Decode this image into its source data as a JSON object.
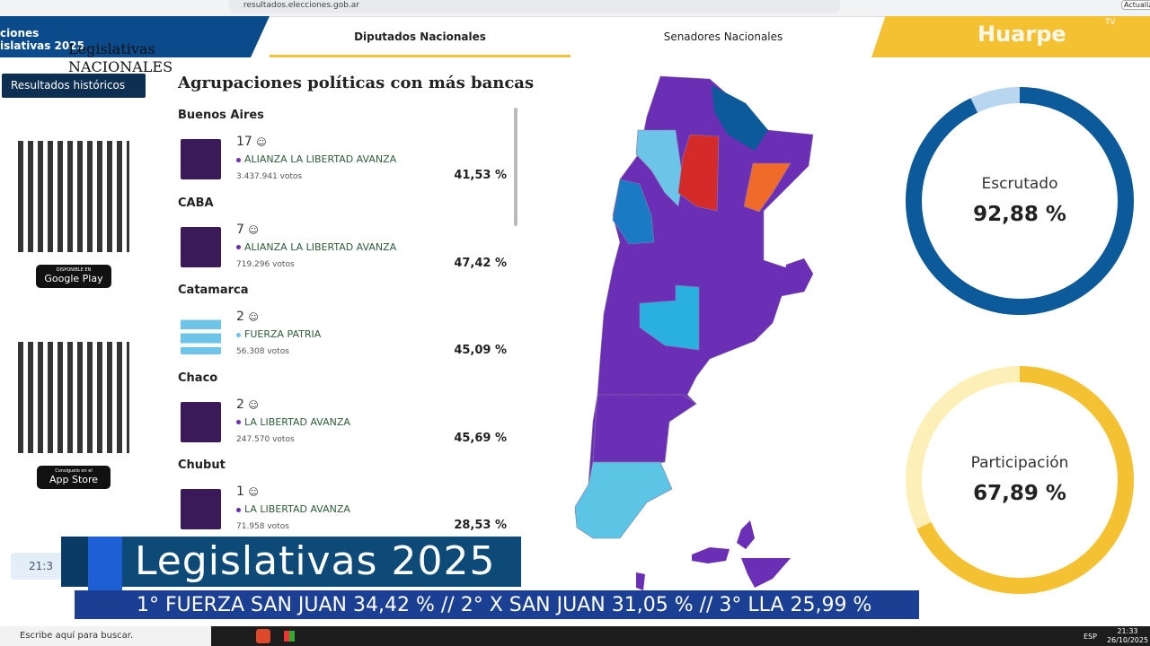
{
  "browser": {
    "url": "resultados.elecciones.gob.ar",
    "button": "Actualiz"
  },
  "header": {
    "logo_line1": "ciones",
    "logo_line2": "islativas 2025",
    "logo_title": "Legislativas",
    "logo_subtitle": "NACIONALES",
    "tabs": [
      "Diputados Nacionales",
      "Senadores Nacionales"
    ],
    "watermark": "Huarpe",
    "watermark_suffix": "TV"
  },
  "sidebar": {
    "history_button": "Resultados históricos",
    "google_play": {
      "caption": "DISPONIBLE EN",
      "name": "Google Play"
    },
    "app_store": {
      "caption": "Consíguelo en el",
      "name": "App Store"
    },
    "clock": "21:3"
  },
  "list": {
    "title": "Agrupaciones políticas con más bancas",
    "entries": [
      {
        "province": "Buenos Aires",
        "seats": "17",
        "party": "ALIANZA LA LIBERTAD AVANZA",
        "votes": "3.437.941 votos",
        "percent": "41,53 %",
        "color": "#6a2fb5"
      },
      {
        "province": "CABA",
        "seats": "7",
        "party": "ALIANZA LA LIBERTAD AVANZA",
        "votes": "719.296 votos",
        "percent": "47,42 %",
        "color": "#6a2fb5"
      },
      {
        "province": "Catamarca",
        "seats": "2",
        "party": "FUERZA PATRIA",
        "votes": "56.308 votos",
        "percent": "45,09 %",
        "color": "#6cc4e8"
      },
      {
        "province": "Chaco",
        "seats": "2",
        "party": "LA LIBERTAD AVANZA",
        "votes": "247.570 votos",
        "percent": "45,69 %",
        "color": "#6a2fb5"
      },
      {
        "province": "Chubut",
        "seats": "1",
        "party": "LA LIBERTAD AVANZA",
        "votes": "71.958 votos",
        "percent": "28,53 %",
        "color": "#6a2fb5"
      }
    ]
  },
  "gauges": [
    {
      "label": "Escrutado",
      "value": 92.88,
      "value_label": "92,88 %",
      "color": "#0d5a9a",
      "track": "#b8d6f0"
    },
    {
      "label": "Participación",
      "value": 67.89,
      "value_label": "67,89 %",
      "color": "#f4c132",
      "track": "#fcf0b8"
    }
  ],
  "ticker": {
    "headline": "Legislativas 2025",
    "crawl": "1° FUERZA SAN JUAN 34,42 % // 2° X SAN JUAN 31,05 % // 3° LLA 25,99 %"
  },
  "taskbar": {
    "search": "Escribe aquí para buscar.",
    "language": "ESP",
    "time": "21:33",
    "date": "26/10/2025"
  }
}
